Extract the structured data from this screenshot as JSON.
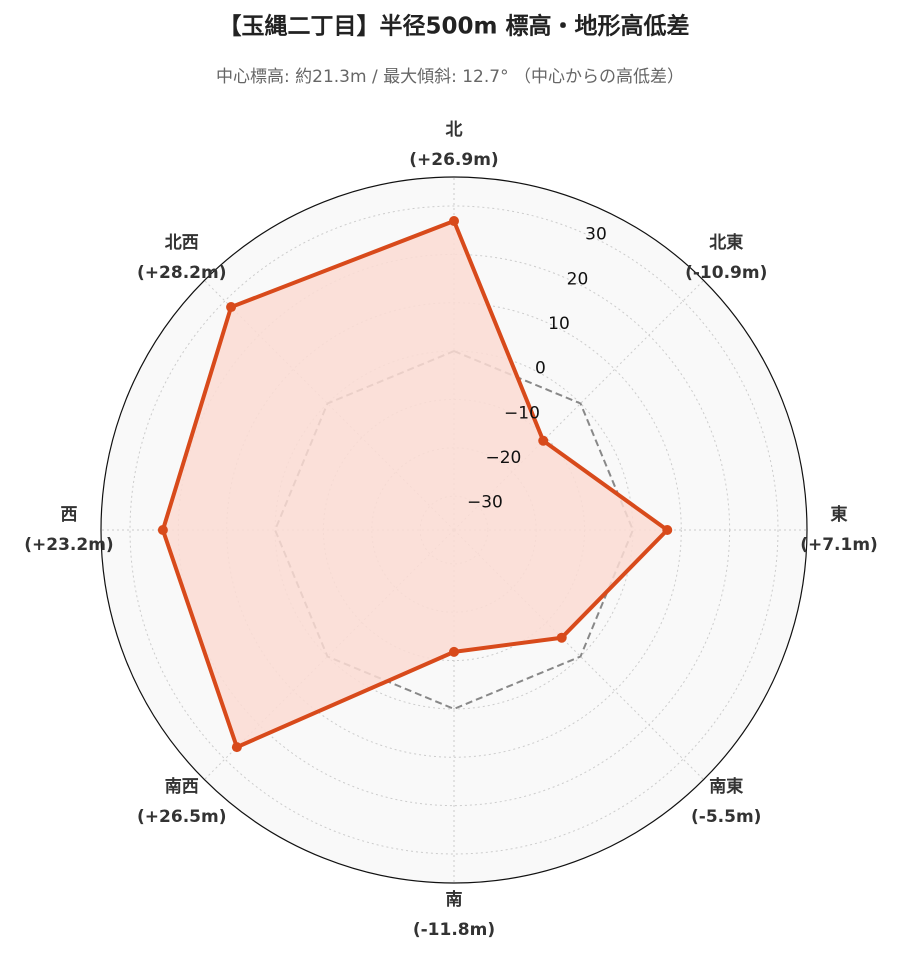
{
  "chart_data": {
    "type": "radar",
    "title": "【玉縄二丁目】半径500m 標高・地形高低差",
    "subtitle": "中心標高: 約21.3m / 最大傾斜: 12.7° （中心からの高低差）",
    "categories": [
      "北",
      "北東",
      "東",
      "南東",
      "南",
      "南西",
      "西",
      "北西"
    ],
    "values": [
      26.9,
      -10.9,
      7.1,
      -5.5,
      -11.8,
      26.5,
      23.2,
      28.2
    ],
    "value_labels": [
      "(+26.9m)",
      "(-10.9m)",
      "(+7.1m)",
      "(-5.5m)",
      "(-11.8m)",
      "(+26.5m)",
      "(+23.2m)",
      "(+28.2m)"
    ],
    "color": "#d84a1b",
    "fill_color": "#fbdcd3",
    "baseline": 0,
    "ylim": [
      -37,
      36
    ],
    "yticks": [
      {
        "value": -30,
        "label": "−30"
      },
      {
        "value": -20,
        "label": "−20"
      },
      {
        "value": -10,
        "label": "−10"
      },
      0,
      10,
      20,
      30
    ],
    "grid": true
  }
}
